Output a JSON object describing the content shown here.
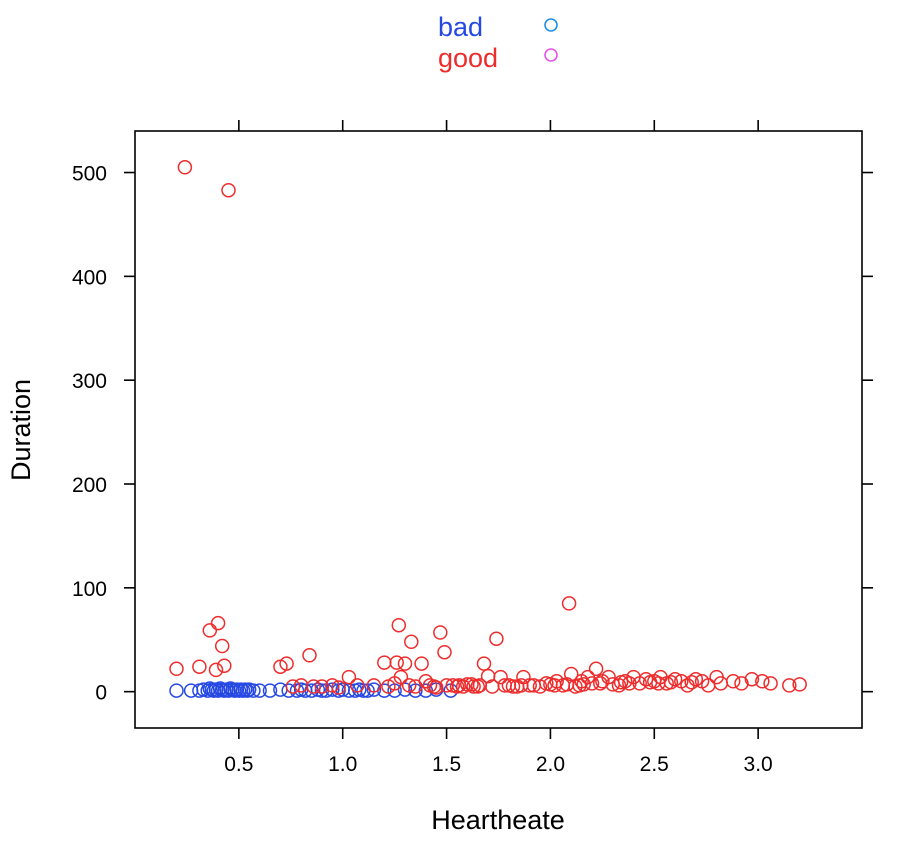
{
  "chart_data": {
    "type": "scatter",
    "xlabel": "Heartheate",
    "ylabel": "Duration",
    "xlim": [
      0.0,
      3.5
    ],
    "ylim": [
      -35,
      540
    ],
    "x_ticks": [
      0.5,
      1.0,
      1.5,
      2.0,
      2.5,
      3.0
    ],
    "x_tick_labels": [
      "0.5",
      "1.0",
      "1.5",
      "2.0",
      "2.5",
      "3.0"
    ],
    "y_ticks": [
      0,
      100,
      200,
      300,
      400,
      500
    ],
    "y_tick_labels": [
      "0",
      "100",
      "200",
      "300",
      "400",
      "500"
    ],
    "legend": {
      "position": "top",
      "entries": [
        {
          "name": "bad",
          "text_color": "#2649e3",
          "symbol_color": "#1f8fe8"
        },
        {
          "name": "good",
          "text_color": "#ee2c2c",
          "symbol_color": "#e455e8"
        }
      ]
    },
    "series": [
      {
        "name": "bad",
        "color": "#2649e3",
        "points": [
          [
            0.2,
            1
          ],
          [
            0.27,
            1
          ],
          [
            0.31,
            1
          ],
          [
            0.33,
            2
          ],
          [
            0.35,
            1
          ],
          [
            0.36,
            3
          ],
          [
            0.37,
            2
          ],
          [
            0.38,
            1
          ],
          [
            0.39,
            2
          ],
          [
            0.4,
            1
          ],
          [
            0.41,
            3
          ],
          [
            0.42,
            2
          ],
          [
            0.43,
            1
          ],
          [
            0.44,
            2
          ],
          [
            0.45,
            1
          ],
          [
            0.46,
            3
          ],
          [
            0.47,
            2
          ],
          [
            0.48,
            1
          ],
          [
            0.49,
            2
          ],
          [
            0.5,
            1
          ],
          [
            0.51,
            2
          ],
          [
            0.52,
            1
          ],
          [
            0.53,
            2
          ],
          [
            0.54,
            1
          ],
          [
            0.55,
            2
          ],
          [
            0.57,
            1
          ],
          [
            0.6,
            1
          ],
          [
            0.65,
            1
          ],
          [
            0.7,
            2
          ],
          [
            0.74,
            1
          ],
          [
            0.78,
            1
          ],
          [
            0.8,
            2
          ],
          [
            0.82,
            1
          ],
          [
            0.85,
            1
          ],
          [
            0.88,
            2
          ],
          [
            0.9,
            1
          ],
          [
            0.92,
            1
          ],
          [
            0.95,
            2
          ],
          [
            0.98,
            1
          ],
          [
            1.0,
            2
          ],
          [
            1.03,
            1
          ],
          [
            1.06,
            1
          ],
          [
            1.08,
            2
          ],
          [
            1.1,
            1
          ],
          [
            1.12,
            1
          ],
          [
            1.15,
            2
          ],
          [
            1.2,
            1
          ],
          [
            1.25,
            1
          ],
          [
            1.3,
            2
          ],
          [
            1.35,
            1
          ],
          [
            1.4,
            1
          ],
          [
            1.45,
            2
          ],
          [
            1.52,
            1
          ]
        ]
      },
      {
        "name": "good",
        "color": "#ee2c2c",
        "points": [
          [
            0.24,
            505
          ],
          [
            0.45,
            483
          ],
          [
            0.2,
            22
          ],
          [
            0.31,
            24
          ],
          [
            0.36,
            59
          ],
          [
            0.39,
            21
          ],
          [
            0.4,
            66
          ],
          [
            0.42,
            44
          ],
          [
            0.43,
            25
          ],
          [
            0.7,
            24
          ],
          [
            0.73,
            27
          ],
          [
            0.76,
            5
          ],
          [
            0.8,
            6
          ],
          [
            0.84,
            35
          ],
          [
            0.86,
            5
          ],
          [
            0.9,
            5
          ],
          [
            0.95,
            6
          ],
          [
            0.98,
            4
          ],
          [
            1.03,
            14
          ],
          [
            1.07,
            6
          ],
          [
            1.15,
            6
          ],
          [
            1.2,
            28
          ],
          [
            1.22,
            5
          ],
          [
            1.25,
            8
          ],
          [
            1.26,
            28
          ],
          [
            1.27,
            64
          ],
          [
            1.28,
            14
          ],
          [
            1.3,
            27
          ],
          [
            1.32,
            6
          ],
          [
            1.33,
            48
          ],
          [
            1.35,
            5
          ],
          [
            1.38,
            27
          ],
          [
            1.4,
            10
          ],
          [
            1.42,
            6
          ],
          [
            1.44,
            5
          ],
          [
            1.47,
            57
          ],
          [
            1.49,
            38
          ],
          [
            1.5,
            6
          ],
          [
            1.55,
            5
          ],
          [
            1.6,
            7
          ],
          [
            1.63,
            5
          ],
          [
            1.68,
            27
          ],
          [
            1.7,
            15
          ],
          [
            1.72,
            5
          ],
          [
            1.74,
            51
          ],
          [
            1.76,
            14
          ],
          [
            1.8,
            6
          ],
          [
            1.84,
            5
          ],
          [
            1.87,
            14
          ],
          [
            1.9,
            6
          ],
          [
            1.95,
            5
          ],
          [
            2.0,
            7
          ],
          [
            2.03,
            10
          ],
          [
            2.06,
            6
          ],
          [
            2.09,
            85
          ],
          [
            2.1,
            17
          ],
          [
            2.12,
            5
          ],
          [
            2.15,
            10
          ],
          [
            2.18,
            14
          ],
          [
            2.2,
            8
          ],
          [
            2.22,
            22
          ],
          [
            2.25,
            10
          ],
          [
            2.28,
            14
          ],
          [
            2.3,
            7
          ],
          [
            2.33,
            6
          ],
          [
            2.36,
            10
          ],
          [
            2.4,
            14
          ],
          [
            2.43,
            8
          ],
          [
            2.46,
            12
          ],
          [
            2.5,
            10
          ],
          [
            2.53,
            14
          ],
          [
            2.56,
            8
          ],
          [
            2.6,
            12
          ],
          [
            2.63,
            10
          ],
          [
            2.66,
            6
          ],
          [
            2.7,
            12
          ],
          [
            2.73,
            10
          ],
          [
            2.76,
            6
          ],
          [
            2.8,
            14
          ],
          [
            2.82,
            8
          ],
          [
            2.88,
            10
          ],
          [
            2.92,
            8
          ],
          [
            2.97,
            12
          ],
          [
            3.02,
            10
          ],
          [
            3.06,
            8
          ],
          [
            3.15,
            6
          ],
          [
            3.2,
            7
          ],
          [
            1.56,
            6
          ],
          [
            1.58,
            5
          ],
          [
            1.62,
            7
          ],
          [
            1.65,
            5
          ],
          [
            1.78,
            6
          ],
          [
            1.82,
            5
          ],
          [
            1.92,
            6
          ],
          [
            1.98,
            8
          ],
          [
            2.02,
            6
          ],
          [
            2.08,
            7
          ],
          [
            2.14,
            6
          ],
          [
            2.24,
            8
          ],
          [
            2.38,
            8
          ],
          [
            2.48,
            9
          ],
          [
            2.58,
            9
          ],
          [
            2.68,
            9
          ],
          [
            1.45,
            4
          ],
          [
            1.53,
            6
          ],
          [
            1.66,
            6
          ],
          [
            1.86,
            6
          ],
          [
            2.16,
            7
          ],
          [
            2.34,
            9
          ],
          [
            2.52,
            8
          ]
        ]
      }
    ]
  }
}
